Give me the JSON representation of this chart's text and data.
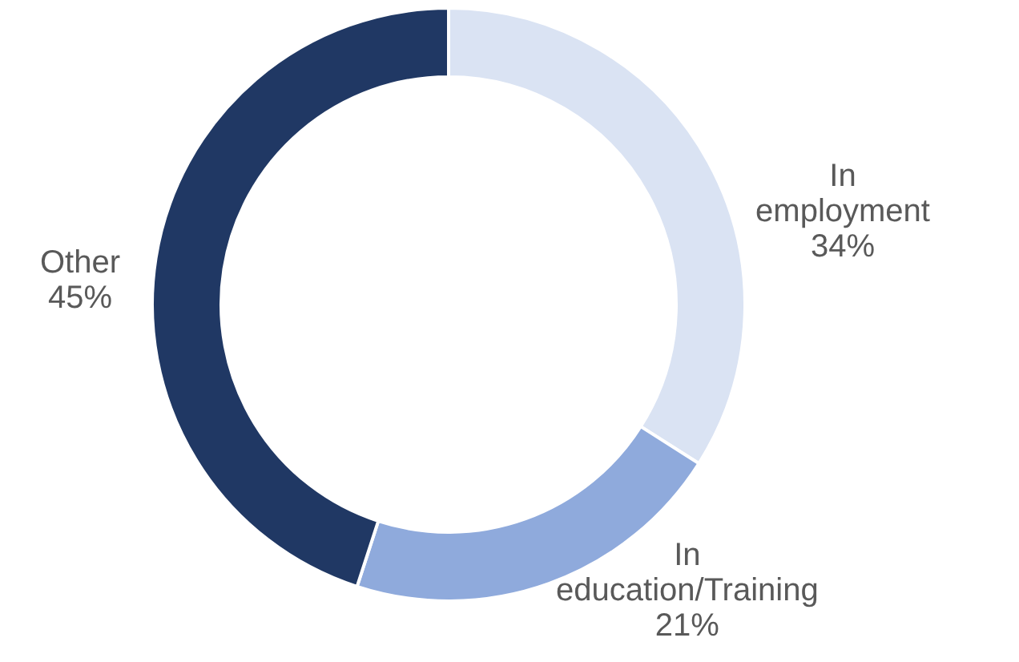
{
  "chart_data": {
    "type": "donut",
    "categories": [
      "In employment",
      "In education/Training",
      "Other"
    ],
    "values": [
      34,
      21,
      45
    ],
    "colors": [
      "#dae3f3",
      "#8faadc",
      "#203864"
    ],
    "value_labels": [
      "34%",
      "21%",
      "45%"
    ],
    "legend": false
  }
}
